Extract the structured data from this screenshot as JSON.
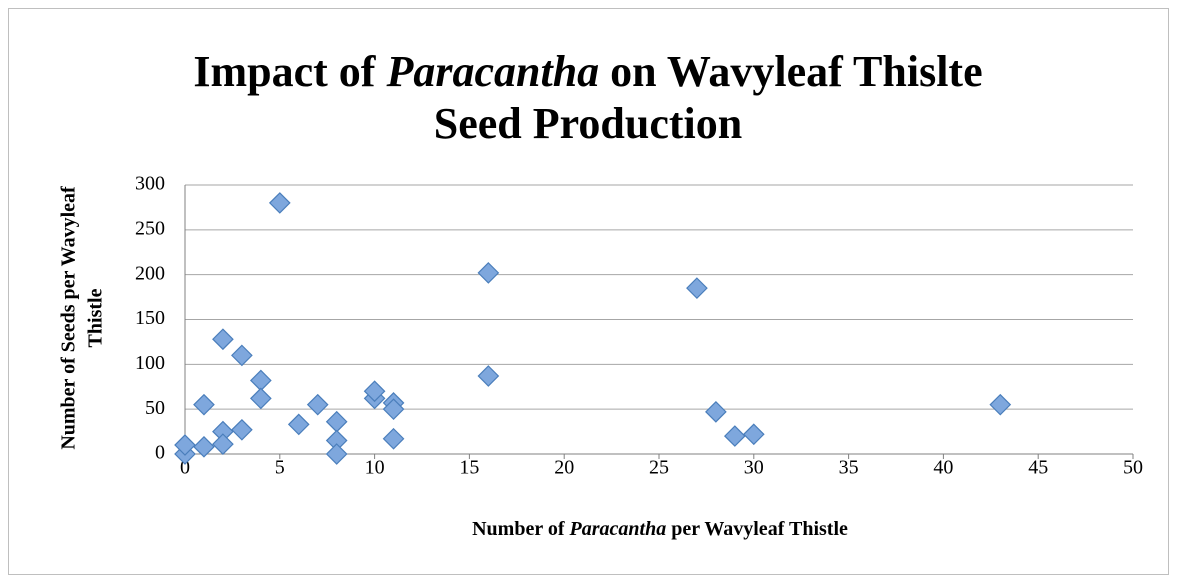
{
  "chart_data": {
    "type": "scatter",
    "title": [
      [
        {
          "text": "Impact of "
        },
        {
          "text": "Paracantha",
          "italic": true
        },
        {
          "text": " on Wavyleaf Thislte"
        }
      ],
      [
        {
          "text": "Seed Production"
        }
      ]
    ],
    "x_label": [
      [
        {
          "text": "Number of "
        },
        {
          "text": "Paracantha",
          "italic": true
        },
        {
          "text": " per Wavyleaf Thistle"
        }
      ]
    ],
    "y_label": [
      [
        {
          "text": "Number of Seeds per Wavyleaf"
        }
      ],
      [
        {
          "text": "Thistle"
        }
      ]
    ],
    "x": [
      0,
      0,
      1,
      1,
      2,
      2,
      2,
      3,
      3,
      4,
      4,
      5,
      6,
      7,
      8,
      8,
      8,
      10,
      10,
      11,
      11,
      11,
      16,
      16,
      27,
      28,
      29,
      30,
      43
    ],
    "values": [
      0,
      10,
      8,
      55,
      128,
      25,
      11,
      110,
      27,
      82,
      62,
      280,
      33,
      55,
      36,
      15,
      0,
      62,
      70,
      57,
      50,
      17,
      202,
      87,
      185,
      47,
      20,
      22,
      55
    ],
    "color": "#7ea7dd",
    "edge_color": "#4a7ebb",
    "xlim": [
      0,
      50
    ],
    "xticks": [
      0,
      5,
      10,
      15,
      20,
      25,
      30,
      35,
      40,
      45,
      50
    ],
    "ylim": [
      0,
      300
    ],
    "yticks": [
      0,
      50,
      100,
      150,
      200,
      250,
      300
    ],
    "grid": true
  }
}
